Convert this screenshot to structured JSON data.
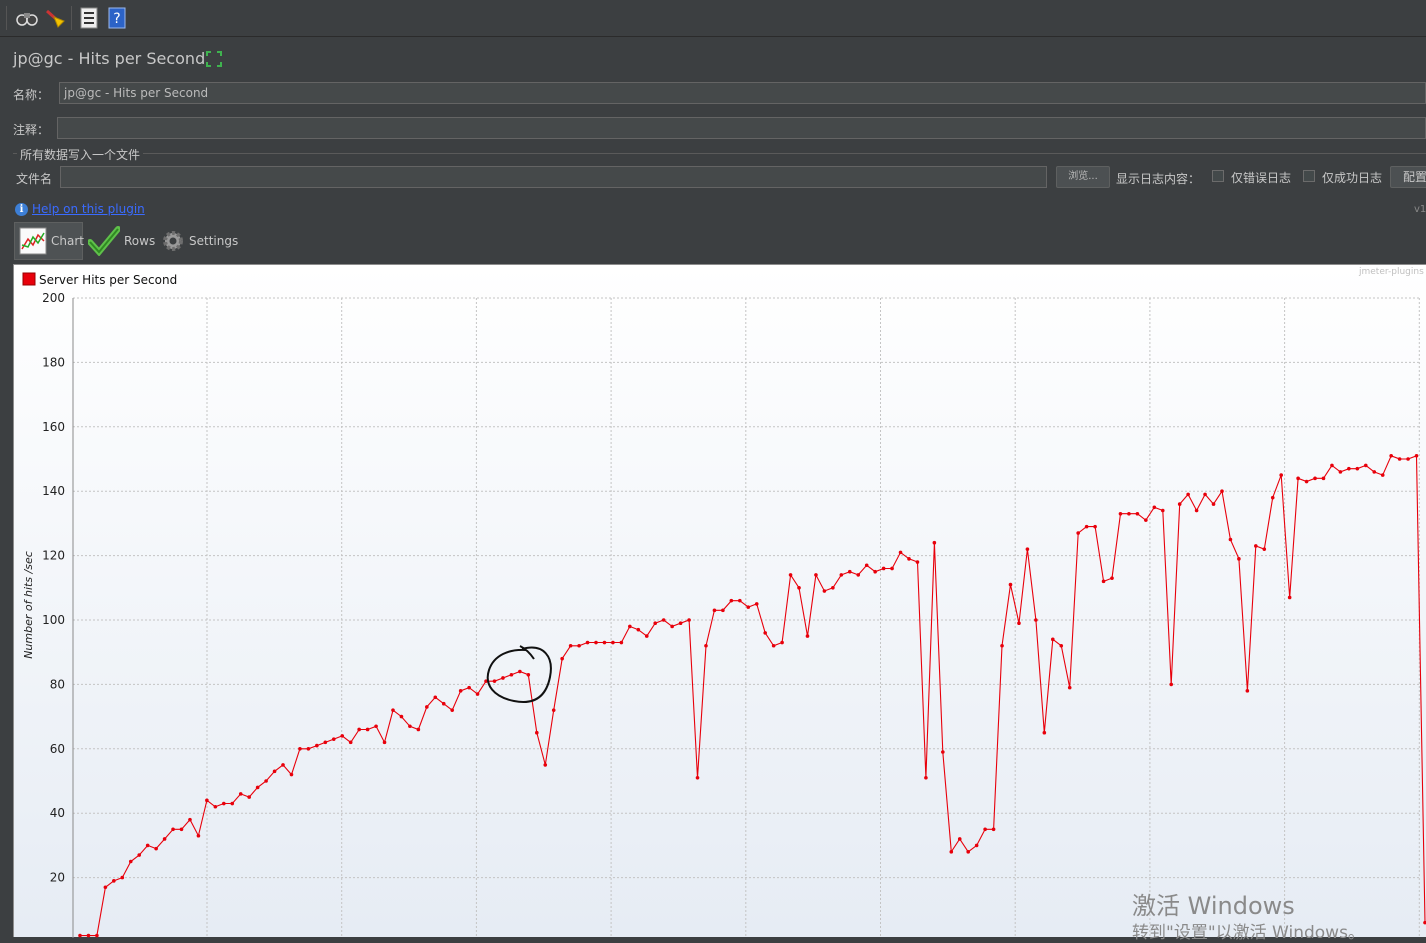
{
  "window": {
    "title": "jp@gc - Hits per Second"
  },
  "toolbar": {
    "icons": [
      "binoculars-icon",
      "broom-icon",
      "list-icon",
      "help-book-icon"
    ]
  },
  "form": {
    "name_label": "名称：",
    "name_value": "jp@gc - Hits per Second",
    "comment_label": "注释：",
    "comment_value": "",
    "section_title": "所有数据写入一个文件",
    "filename_label": "文件名",
    "filename_value": "",
    "browse_label": "浏览...",
    "log_content_label": "显示日志内容：",
    "errors_only_label": "仅错误日志",
    "errors_only_checked": false,
    "success_only_label": "仅成功日志",
    "success_only_checked": false,
    "configure_label": "配置",
    "version_label": "v1"
  },
  "help": {
    "link_text": "Help on this plugin"
  },
  "tabs": [
    {
      "label": "Chart",
      "icon": "line-chart-icon",
      "active": true
    },
    {
      "label": "Rows",
      "icon": "checkmark-icon",
      "active": false
    },
    {
      "label": "Settings",
      "icon": "gear-icon",
      "active": false
    }
  ],
  "chart": {
    "brand": "jmeter-plugins",
    "series_color": "#e8000b"
  },
  "chart_data": {
    "type": "line",
    "ylabel": "Number of hits /sec",
    "ylim": [
      0,
      200
    ],
    "yticks": [
      20,
      40,
      60,
      80,
      100,
      120,
      140,
      160,
      180,
      200
    ],
    "grid": true,
    "legend_position": "top-left",
    "series": [
      {
        "name": "Server Hits per Second",
        "color": "#e8000b",
        "values": [
          2,
          2,
          2,
          17,
          19,
          20,
          25,
          27,
          30,
          29,
          32,
          35,
          35,
          38,
          33,
          44,
          42,
          43,
          43,
          46,
          45,
          48,
          50,
          53,
          55,
          52,
          60,
          60,
          61,
          62,
          63,
          64,
          62,
          66,
          66,
          67,
          62,
          72,
          70,
          67,
          66,
          73,
          76,
          74,
          72,
          78,
          79,
          77,
          81,
          81,
          82,
          83,
          84,
          83,
          65,
          55,
          72,
          88,
          92,
          92,
          93,
          93,
          93,
          93,
          93,
          98,
          97,
          95,
          99,
          100,
          98,
          99,
          100,
          51,
          92,
          103,
          103,
          106,
          106,
          104,
          105,
          96,
          92,
          93,
          114,
          110,
          95,
          114,
          109,
          110,
          114,
          115,
          114,
          117,
          115,
          116,
          116,
          121,
          119,
          118,
          51,
          124,
          59,
          28,
          32,
          28,
          30,
          35,
          35,
          92,
          111,
          99,
          122,
          100,
          65,
          94,
          92,
          79,
          127,
          129,
          129,
          112,
          113,
          133,
          133,
          133,
          131,
          135,
          134,
          80,
          136,
          139,
          134,
          139,
          136,
          140,
          125,
          119,
          78,
          123,
          122,
          138,
          145,
          107,
          144,
          143,
          144,
          144,
          148,
          146,
          147,
          147,
          148,
          146,
          145,
          151,
          150,
          150,
          151,
          6
        ]
      }
    ]
  },
  "annotation": {
    "type": "hand-drawn circle",
    "color": "#000000"
  },
  "overlay": {
    "activate_title": "激活 Windows",
    "activate_subtitle": "转到\"设置\"以激活 Windows。"
  }
}
